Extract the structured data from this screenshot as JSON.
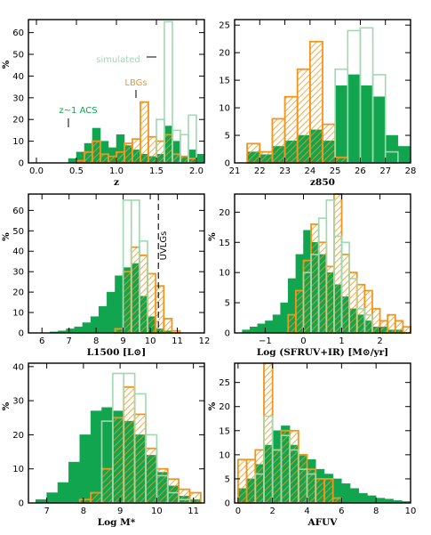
{
  "colors": {
    "acs": "#12a54f",
    "lbg": "#f0961e",
    "simulated": "#9fd9b0",
    "axis": "#000000"
  },
  "chart_data": [
    {
      "id": "redshift",
      "type": "histogram",
      "xlabel": "z",
      "ylabel": "%",
      "xlim": [
        -0.1,
        2.1
      ],
      "ylim": [
        0,
        66
      ],
      "xticks": [
        0.0,
        0.5,
        1.0,
        1.5,
        2.0
      ],
      "xtick_labels": [
        "0.0",
        "0.5",
        "1.0",
        "1.5",
        "2.0"
      ],
      "yticks": [
        0,
        10,
        20,
        30,
        40,
        50,
        60
      ],
      "ytick_labels": [
        "0",
        "10",
        "20",
        "30",
        "40",
        "50",
        "60"
      ],
      "bin_edges": [
        0.3,
        0.4,
        0.5,
        0.6,
        0.7,
        0.8,
        0.9,
        1.0,
        1.1,
        1.2,
        1.3,
        1.4,
        1.5,
        1.6,
        1.7,
        1.8,
        1.9,
        2.0,
        2.1
      ],
      "series": [
        {
          "name": "z~1 ACS",
          "style": "solid",
          "values": [
            0,
            2,
            5,
            9,
            16,
            10,
            7,
            13,
            8,
            6,
            4,
            3,
            4,
            17,
            10,
            3,
            6,
            4
          ]
        },
        {
          "name": "LBGs",
          "style": "hatch",
          "values": [
            0,
            0,
            1,
            5,
            10,
            4,
            3,
            5,
            9,
            11,
            28,
            12,
            10,
            13,
            4,
            3,
            2,
            0
          ]
        },
        {
          "name": "simulated",
          "style": "open",
          "values": [
            0,
            0,
            0,
            0,
            0,
            0,
            0,
            0,
            0,
            0,
            0,
            0,
            20,
            65,
            15,
            13,
            22,
            0
          ]
        }
      ],
      "annotations": [
        {
          "text": "simulated",
          "series": "simulated"
        },
        {
          "text": "LBGs",
          "series": "LBGs"
        },
        {
          "text": "z~1 ACS",
          "series": "z~1 ACS"
        }
      ],
      "grid": false
    },
    {
      "id": "z850",
      "type": "histogram",
      "xlabel": "z850",
      "ylabel": "",
      "xlim": [
        21,
        28
      ],
      "ylim": [
        0,
        26
      ],
      "xticks": [
        21,
        22,
        23,
        24,
        25,
        26,
        27,
        28
      ],
      "xtick_labels": [
        "21",
        "22",
        "23",
        "24",
        "25",
        "26",
        "27",
        "28"
      ],
      "yticks": [
        0,
        5,
        10,
        15,
        20,
        25
      ],
      "ytick_labels": [
        "0",
        "5",
        "10",
        "15",
        "20",
        "25"
      ],
      "bin_edges": [
        21.5,
        22.0,
        22.5,
        23.0,
        23.5,
        24.0,
        24.5,
        25.0,
        25.5,
        26.0,
        26.5,
        27.0,
        27.5,
        28.0
      ],
      "series": [
        {
          "name": "z~1 ACS",
          "style": "solid",
          "values": [
            2,
            1.5,
            3,
            4,
            5,
            6,
            4,
            14,
            16,
            14,
            12,
            5,
            3
          ]
        },
        {
          "name": "LBGs",
          "style": "hatch",
          "values": [
            3.5,
            2,
            8,
            12,
            17,
            22,
            7,
            1,
            0,
            0,
            0,
            0,
            0
          ]
        },
        {
          "name": "simulated",
          "style": "open",
          "values": [
            0,
            0,
            0,
            0,
            0,
            0,
            0,
            17,
            24,
            24.5,
            16,
            2,
            0
          ]
        }
      ],
      "grid": false
    },
    {
      "id": "l1500",
      "type": "histogram",
      "xlabel": "L1500 [L⊙]",
      "ylabel": "%",
      "xlim": [
        5.5,
        12
      ],
      "ylim": [
        0,
        68
      ],
      "xticks": [
        6,
        7,
        8,
        9,
        10,
        11,
        12
      ],
      "xtick_labels": [
        "6",
        "7",
        "8",
        "9",
        "10",
        "11",
        "12"
      ],
      "yticks": [
        0,
        10,
        20,
        30,
        40,
        50,
        60
      ],
      "ytick_labels": [
        "0",
        "10",
        "20",
        "30",
        "40",
        "50",
        "60"
      ],
      "bin_edges": [
        6.3,
        6.6,
        6.9,
        7.2,
        7.5,
        7.8,
        8.1,
        8.4,
        8.7,
        9.0,
        9.3,
        9.6,
        9.9,
        10.2,
        10.5,
        10.8,
        11.1
      ],
      "series": [
        {
          "name": "z~1 ACS",
          "style": "solid",
          "values": [
            0.5,
            1,
            2,
            3,
            5,
            8,
            13,
            20,
            28,
            32,
            34,
            18,
            8,
            2,
            1,
            0
          ]
        },
        {
          "name": "LBGs",
          "style": "hatch",
          "values": [
            0,
            0,
            0,
            0,
            0,
            0,
            0,
            0,
            2,
            30,
            42,
            38,
            29,
            23,
            7,
            1
          ]
        },
        {
          "name": "simulated",
          "style": "open",
          "values": [
            0,
            0,
            0,
            0,
            0,
            0,
            0,
            0,
            0,
            65,
            65,
            45,
            0,
            0,
            0,
            0
          ]
        }
      ],
      "vline": {
        "x": 10.3,
        "label": "UVLGs"
      },
      "grid": false
    },
    {
      "id": "sfr",
      "type": "histogram",
      "xlabel": "Log (SFRUV+IR) [M⊙/yr]",
      "ylabel": "%",
      "xlim": [
        -1.8,
        2.8
      ],
      "ylim": [
        0,
        23
      ],
      "xticks": [
        -1,
        0,
        1,
        2
      ],
      "xtick_labels": [
        "−1",
        "0",
        "1",
        "2"
      ],
      "yticks": [
        0,
        5,
        10,
        15,
        20
      ],
      "ytick_labels": [
        "0",
        "5",
        "10",
        "15",
        "20"
      ],
      "bin_edges": [
        -1.6,
        -1.4,
        -1.2,
        -1.0,
        -0.8,
        -0.6,
        -0.4,
        -0.2,
        0.0,
        0.2,
        0.4,
        0.6,
        0.8,
        1.0,
        1.2,
        1.4,
        1.6,
        1.8,
        2.0,
        2.2,
        2.4,
        2.6,
        2.8
      ],
      "series": [
        {
          "name": "z~1 ACS",
          "style": "solid",
          "values": [
            0.5,
            1,
            1.5,
            2,
            3,
            5,
            9,
            13,
            17,
            15,
            13,
            10,
            8,
            6,
            4,
            3,
            2,
            1,
            1,
            0.5,
            0.5,
            0
          ]
        },
        {
          "name": "LBGs",
          "style": "hatch",
          "values": [
            0,
            0,
            0,
            0,
            0,
            0,
            3,
            7,
            12,
            18,
            15,
            11,
            23,
            13,
            10,
            8,
            7,
            4,
            2,
            3,
            2,
            1
          ]
        },
        {
          "name": "simulated",
          "style": "open",
          "values": [
            0,
            0,
            0,
            0,
            0,
            0,
            0,
            0,
            10,
            13,
            19,
            22,
            16,
            15,
            9,
            4,
            3,
            0,
            0,
            0,
            0,
            0
          ]
        }
      ],
      "grid": false
    },
    {
      "id": "mass",
      "type": "histogram",
      "xlabel": "Log M*",
      "ylabel": "%",
      "xlim": [
        6.5,
        11.3
      ],
      "ylim": [
        0,
        41
      ],
      "xticks": [
        7,
        8,
        9,
        10,
        11
      ],
      "xtick_labels": [
        "7",
        "8",
        "9",
        "10",
        "11"
      ],
      "yticks": [
        0,
        10,
        20,
        30,
        40
      ],
      "ytick_labels": [
        "0",
        "10",
        "20",
        "30",
        "40"
      ],
      "bin_edges": [
        6.7,
        7.0,
        7.3,
        7.6,
        7.9,
        8.2,
        8.5,
        8.8,
        9.1,
        9.4,
        9.7,
        10.0,
        10.3,
        10.6,
        10.9,
        11.2
      ],
      "series": [
        {
          "name": "z~1 ACS",
          "style": "solid",
          "values": [
            1,
            3,
            6,
            12,
            20,
            27,
            28,
            27,
            24,
            20,
            14,
            9,
            5,
            2,
            1
          ]
        },
        {
          "name": "LBGs",
          "style": "hatch",
          "values": [
            0,
            0,
            0,
            0,
            1,
            3,
            10,
            25,
            34,
            26,
            16,
            10,
            7,
            4,
            3
          ]
        },
        {
          "name": "simulated",
          "style": "open",
          "values": [
            0,
            0,
            0,
            0,
            0,
            0,
            24,
            38,
            38,
            32,
            20,
            8,
            3,
            1,
            0
          ]
        }
      ],
      "grid": false
    },
    {
      "id": "afuv",
      "type": "histogram",
      "xlabel": "AFUV",
      "ylabel": "%",
      "xlim": [
        -0.2,
        10
      ],
      "ylim": [
        0,
        29
      ],
      "xticks": [
        0,
        2,
        4,
        6,
        8,
        10
      ],
      "xtick_labels": [
        "0",
        "2",
        "4",
        "6",
        "8",
        "10"
      ],
      "yticks": [
        0,
        5,
        10,
        15,
        20,
        25
      ],
      "ytick_labels": [
        "0",
        "5",
        "10",
        "15",
        "20",
        "25"
      ],
      "bin_edges": [
        0.0,
        0.5,
        1.0,
        1.5,
        2.0,
        2.5,
        3.0,
        3.5,
        4.0,
        4.5,
        5.0,
        5.5,
        6.0,
        6.5,
        7.0,
        7.5,
        8.0,
        8.5,
        9.0,
        9.5,
        10.0
      ],
      "series": [
        {
          "name": "z~1 ACS",
          "style": "solid",
          "values": [
            3,
            5,
            8,
            12,
            15,
            16,
            12,
            10,
            9,
            7,
            6,
            5,
            4,
            3,
            2,
            1.5,
            1,
            0.8,
            0.5,
            0.3
          ]
        },
        {
          "name": "LBGs",
          "style": "hatch",
          "values": [
            9,
            9,
            11,
            29,
            11,
            15,
            15,
            10,
            7,
            5,
            5,
            1,
            0,
            0,
            0,
            0,
            0,
            0,
            0,
            0
          ]
        },
        {
          "name": "simulated",
          "style": "open",
          "values": [
            0,
            0,
            6,
            18,
            11,
            14,
            11,
            7,
            6,
            0,
            0,
            0,
            0,
            0,
            0,
            0,
            0,
            0,
            0,
            0
          ]
        }
      ],
      "grid": false
    }
  ]
}
